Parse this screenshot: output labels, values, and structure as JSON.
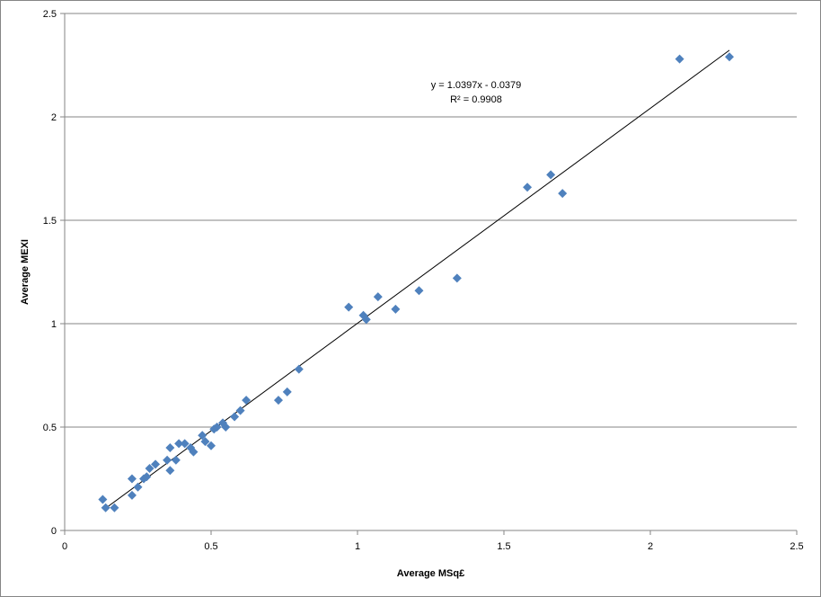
{
  "chart_data": {
    "type": "scatter",
    "title": "",
    "xlabel": "Average MSq£",
    "ylabel": "Average MEXI",
    "xlim": [
      0,
      2.5
    ],
    "ylim": [
      0,
      2.5
    ],
    "x_ticks": [
      "0",
      "0.5",
      "1",
      "1.5",
      "2",
      "2.5"
    ],
    "y_ticks": [
      "0",
      "0.5",
      "1",
      "1.5",
      "2",
      "2.5"
    ],
    "grid": "horizontal",
    "legend": "none",
    "marker_color": "#4F81BD",
    "series": [
      {
        "points": [
          [
            0.13,
            0.15
          ],
          [
            0.14,
            0.11
          ],
          [
            0.17,
            0.11
          ],
          [
            0.23,
            0.17
          ],
          [
            0.23,
            0.25
          ],
          [
            0.25,
            0.21
          ],
          [
            0.27,
            0.25
          ],
          [
            0.28,
            0.26
          ],
          [
            0.29,
            0.3
          ],
          [
            0.31,
            0.32
          ],
          [
            0.35,
            0.34
          ],
          [
            0.36,
            0.29
          ],
          [
            0.36,
            0.4
          ],
          [
            0.38,
            0.34
          ],
          [
            0.39,
            0.42
          ],
          [
            0.41,
            0.42
          ],
          [
            0.43,
            0.4
          ],
          [
            0.44,
            0.38
          ],
          [
            0.47,
            0.46
          ],
          [
            0.48,
            0.43
          ],
          [
            0.5,
            0.41
          ],
          [
            0.51,
            0.49
          ],
          [
            0.52,
            0.5
          ],
          [
            0.54,
            0.52
          ],
          [
            0.55,
            0.5
          ],
          [
            0.58,
            0.55
          ],
          [
            0.6,
            0.58
          ],
          [
            0.62,
            0.63
          ],
          [
            0.73,
            0.63
          ],
          [
            0.76,
            0.67
          ],
          [
            0.8,
            0.78
          ],
          [
            0.97,
            1.08
          ],
          [
            1.02,
            1.04
          ],
          [
            1.03,
            1.02
          ],
          [
            1.07,
            1.13
          ],
          [
            1.13,
            1.07
          ],
          [
            1.21,
            1.16
          ],
          [
            1.34,
            1.22
          ],
          [
            1.58,
            1.66
          ],
          [
            1.66,
            1.72
          ],
          [
            1.7,
            1.63
          ],
          [
            2.1,
            2.28
          ],
          [
            2.27,
            2.29
          ]
        ]
      }
    ],
    "trendline": {
      "type": "linear",
      "slope": 1.0397,
      "intercept": -0.0379,
      "x_range": [
        0.14,
        2.27
      ],
      "equation_label": "y = 1.0397x - 0.0379",
      "r2_label": "R² = 0.9908"
    }
  }
}
